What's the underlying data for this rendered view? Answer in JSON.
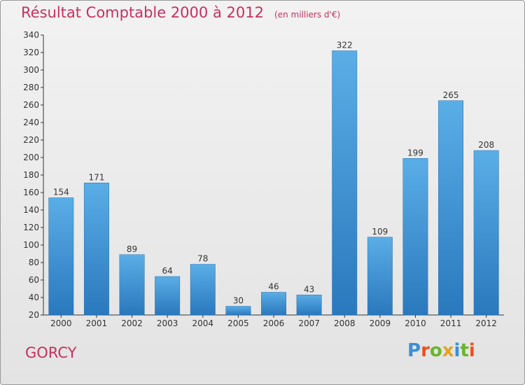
{
  "header": {
    "title": "Résultat Comptable 2000 à 2012",
    "subtitle": "(en milliers d'€)"
  },
  "footer": {
    "commune": "GORCY",
    "logo_text": "Proxiti"
  },
  "colors": {
    "title": "#c8305e",
    "bar_top": "#5aaee6",
    "bar_bottom": "#2a78bd",
    "logo_letters": [
      "#3a8fd6",
      "#e8541e",
      "#6ab42d",
      "#e8a21e",
      "#3a8fd6",
      "#6ab42d",
      "#e8541e"
    ]
  },
  "chart_data": {
    "type": "bar",
    "categories": [
      "2000",
      "2001",
      "2002",
      "2003",
      "2004",
      "2005",
      "2006",
      "2007",
      "2008",
      "2009",
      "2010",
      "2011",
      "2012"
    ],
    "values": [
      154,
      171,
      89,
      64,
      78,
      30,
      46,
      43,
      322,
      109,
      199,
      265,
      208
    ],
    "ylim": [
      20,
      340
    ],
    "yticks": [
      20,
      40,
      60,
      80,
      100,
      120,
      140,
      160,
      180,
      200,
      220,
      240,
      260,
      280,
      300,
      320,
      340
    ],
    "grid": false,
    "legend": "none",
    "data_labels": true
  }
}
